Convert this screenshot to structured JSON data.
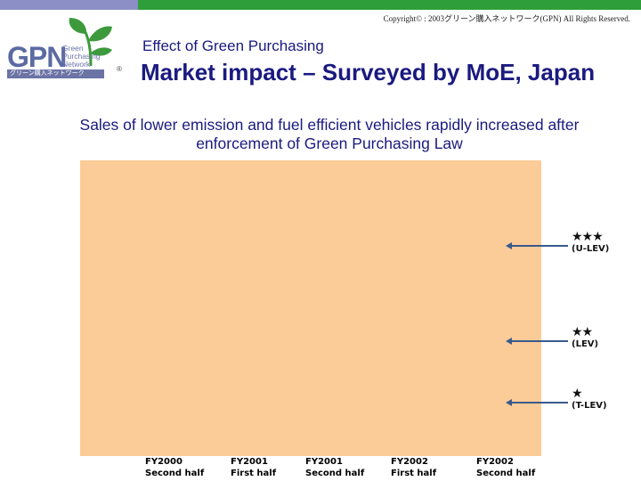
{
  "header": {
    "copyright": "Copyright© : 2003グリーン購入ネットワーク(GPN) All Rights Reserved.",
    "subtitle": "Effect of Green Purchasing",
    "title": "Market impact – Surveyed by MoE, Japan",
    "bar_colors": [
      "#8b8fc6",
      "#2e9e3a"
    ]
  },
  "logo": {
    "mark": "GPN",
    "words": [
      "Green",
      "Purchasing",
      "Network"
    ],
    "jp": "グリーン購入ネットワーク",
    "registered": "®",
    "icon": "sprout-icon"
  },
  "heading": "Sales of lower emission and fuel efficient vehicles rapidly increased after enforcement of Green Purchasing Law",
  "chart_data": {
    "type": "bar",
    "title": "",
    "categories": [
      [
        "FY2000",
        "Second half"
      ],
      [
        "FY2001",
        "First half"
      ],
      [
        "FY2001",
        "Second half"
      ],
      [
        "FY2002",
        "First half"
      ],
      [
        "FY2002",
        "Second half"
      ]
    ],
    "plot_background": "#fbcb98",
    "series": [
      {
        "stars": "★★★",
        "label": "(U-LEV)"
      },
      {
        "stars": "★★",
        "label": "(LEV)"
      },
      {
        "stars": "★",
        "label": "(T-LEV)"
      }
    ],
    "legend_position": "right",
    "legend_arrow_color": "#3a5a8c"
  }
}
